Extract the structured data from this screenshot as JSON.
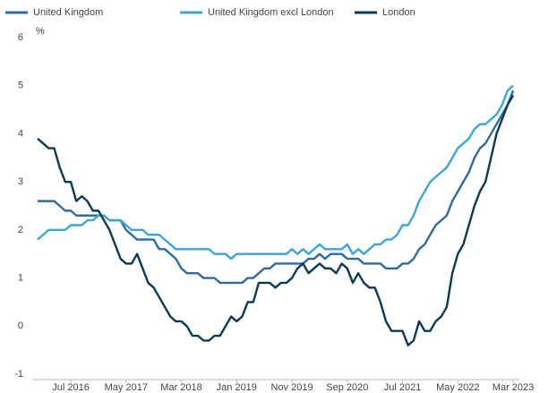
{
  "chart_data": {
    "type": "line",
    "y_label": "%",
    "categories": [
      null,
      null,
      null,
      null,
      null,
      null,
      "Jul 2016",
      null,
      null,
      null,
      null,
      null,
      null,
      null,
      null,
      null,
      "May 2017",
      null,
      null,
      null,
      null,
      null,
      null,
      null,
      null,
      null,
      "Mar 2018",
      null,
      null,
      null,
      null,
      null,
      null,
      null,
      null,
      null,
      "Jan 2019",
      null,
      null,
      null,
      null,
      null,
      null,
      null,
      null,
      null,
      "Nov 2019",
      null,
      null,
      null,
      null,
      null,
      null,
      null,
      null,
      null,
      "Sep 2020",
      null,
      null,
      null,
      null,
      null,
      null,
      null,
      null,
      null,
      "Jul 2021",
      null,
      null,
      null,
      null,
      null,
      null,
      null,
      null,
      null,
      "May 2022",
      null,
      null,
      null,
      null,
      null,
      null,
      null,
      null,
      null,
      "Mar 2023"
    ],
    "series": [
      {
        "name": "United Kingdom",
        "color": "#2f6aa0",
        "values": [
          2.6,
          2.6,
          2.6,
          2.6,
          2.5,
          2.4,
          2.4,
          2.3,
          2.3,
          2.3,
          2.3,
          2.3,
          2.3,
          2.2,
          2.2,
          2.2,
          2.0,
          1.9,
          1.8,
          1.8,
          1.8,
          1.8,
          1.6,
          1.6,
          1.5,
          1.4,
          1.2,
          1.1,
          1.1,
          1.1,
          1.0,
          1.0,
          1.0,
          0.9,
          0.9,
          0.9,
          0.9,
          0.9,
          1.0,
          1.0,
          1.1,
          1.2,
          1.2,
          1.3,
          1.3,
          1.3,
          1.3,
          1.3,
          1.3,
          1.4,
          1.4,
          1.5,
          1.4,
          1.5,
          1.5,
          1.5,
          1.4,
          1.4,
          1.4,
          1.3,
          1.3,
          1.3,
          1.3,
          1.2,
          1.2,
          1.2,
          1.3,
          1.3,
          1.4,
          1.6,
          1.7,
          1.9,
          2.1,
          2.2,
          2.3,
          2.6,
          2.8,
          3.0,
          3.2,
          3.5,
          3.7,
          3.8,
          4.0,
          4.2,
          4.4,
          4.6,
          4.9
        ]
      },
      {
        "name": "United Kingdom excl London",
        "color": "#3aa6d8",
        "values": [
          1.8,
          1.9,
          2.0,
          2.0,
          2.0,
          2.0,
          2.1,
          2.1,
          2.1,
          2.2,
          2.2,
          2.3,
          2.3,
          2.2,
          2.2,
          2.2,
          2.1,
          2.0,
          2.0,
          2.0,
          1.9,
          1.9,
          1.9,
          1.8,
          1.7,
          1.6,
          1.6,
          1.6,
          1.6,
          1.6,
          1.6,
          1.6,
          1.5,
          1.5,
          1.5,
          1.4,
          1.5,
          1.5,
          1.5,
          1.5,
          1.5,
          1.5,
          1.5,
          1.5,
          1.5,
          1.5,
          1.6,
          1.5,
          1.6,
          1.5,
          1.6,
          1.7,
          1.6,
          1.6,
          1.6,
          1.6,
          1.7,
          1.5,
          1.6,
          1.5,
          1.6,
          1.7,
          1.7,
          1.8,
          1.8,
          1.9,
          2.1,
          2.1,
          2.3,
          2.6,
          2.8,
          3.0,
          3.1,
          3.2,
          3.3,
          3.5,
          3.7,
          3.8,
          3.9,
          4.1,
          4.2,
          4.2,
          4.3,
          4.4,
          4.6,
          4.9,
          5.0
        ]
      },
      {
        "name": "London",
        "color": "#0d3a52",
        "values": [
          3.9,
          3.8,
          3.7,
          3.7,
          3.3,
          3.0,
          3.0,
          2.6,
          2.7,
          2.6,
          2.4,
          2.4,
          2.2,
          2.0,
          1.7,
          1.4,
          1.3,
          1.3,
          1.5,
          1.2,
          0.9,
          0.8,
          0.6,
          0.4,
          0.2,
          0.1,
          0.1,
          0.0,
          -0.2,
          -0.2,
          -0.3,
          -0.3,
          -0.2,
          -0.2,
          0.0,
          0.2,
          0.1,
          0.2,
          0.5,
          0.5,
          0.9,
          0.9,
          0.9,
          0.8,
          0.9,
          0.9,
          1.0,
          1.2,
          1.3,
          1.1,
          1.2,
          1.3,
          1.2,
          1.2,
          1.1,
          1.3,
          1.2,
          0.9,
          1.1,
          0.9,
          0.8,
          0.8,
          0.5,
          0.1,
          -0.1,
          -0.1,
          -0.1,
          -0.4,
          -0.3,
          0.1,
          -0.1,
          -0.1,
          0.1,
          0.2,
          0.4,
          1.1,
          1.5,
          1.7,
          2.1,
          2.5,
          2.8,
          3.0,
          3.5,
          4.0,
          4.3,
          4.6,
          4.8
        ]
      }
    ],
    "ylim": [
      -1,
      6
    ],
    "yticks": [
      -1,
      0,
      1,
      2,
      3,
      4,
      5,
      6
    ]
  }
}
